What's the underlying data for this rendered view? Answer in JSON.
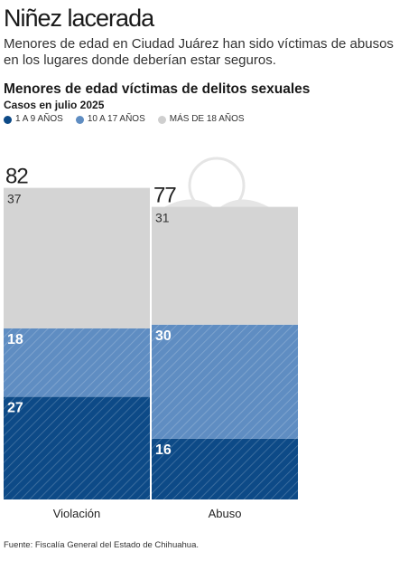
{
  "header": {
    "title": "Niñez lacerada",
    "deck": "Menores de edad en Ciudad Juárez han sido víctimas de abusos en los lugares donde deberían estar seguros."
  },
  "chart_data": {
    "type": "bar",
    "stacked": true,
    "title": "Menores de edad víctimas de delitos sexuales",
    "subtitle": "Casos en julio 2025",
    "categories": [
      "Violación",
      "Abuso"
    ],
    "totals": [
      82,
      77
    ],
    "series": [
      {
        "name": "1 A 9 AÑOS",
        "values": [
          27,
          16
        ],
        "color": "#0d4a87",
        "hatched": true
      },
      {
        "name": "10 A 17 AÑOS",
        "values": [
          18,
          30
        ],
        "color": "#5f8dc2",
        "hatched": true
      },
      {
        "name": "MÁS DE 18 AÑOS",
        "values": [
          37,
          31
        ],
        "color": "#d4d4d4",
        "hatched": false
      }
    ],
    "legend_position": "top-left",
    "grid": false,
    "ylim": [
      0,
      82
    ]
  },
  "footer": {
    "source": "Fuente: Fiscalía General del Estado de Chihuahua."
  }
}
